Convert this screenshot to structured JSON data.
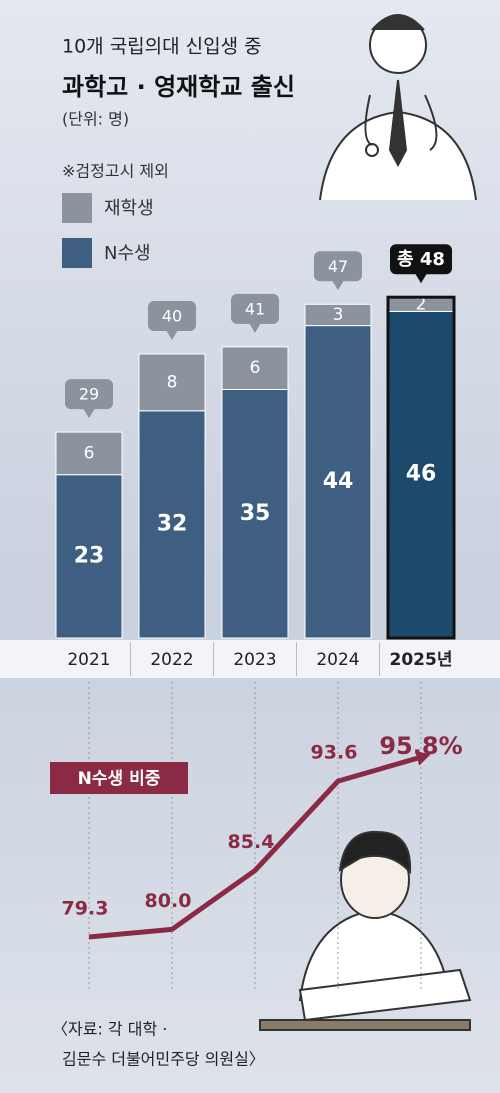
{
  "title": "10개 국립의대 신입생 중",
  "subtitle": "과학고 · 영재학교 출신",
  "unit": "(단위: 명)",
  "note": "※검정고시 제외",
  "chart_data": [
    {
      "type": "bar",
      "stacked": true,
      "categories": [
        "2021",
        "2022",
        "2023",
        "2024",
        "2025년"
      ],
      "series": [
        {
          "name": "N수생",
          "color": "#3f5f82",
          "values": [
            23,
            32,
            35,
            44,
            46
          ]
        },
        {
          "name": "재학생",
          "color": "#8a939e",
          "values": [
            6,
            8,
            6,
            3,
            2
          ]
        }
      ],
      "totals": [
        29,
        40,
        41,
        47,
        48
      ],
      "total_labels": [
        "29",
        "40",
        "41",
        "47",
        "총 48"
      ],
      "highlight_color": "#1d4a6c"
    },
    {
      "type": "line",
      "title": "N수생 비중",
      "values": [
        79.3,
        80.0,
        85.4,
        93.6,
        95.8
      ],
      "value_labels": [
        "79.3",
        "80.0",
        "85.4",
        "93.6",
        "95.8%"
      ],
      "color": "#8b2a45"
    }
  ],
  "source": [
    "〈자료: 각 대학 ·",
    "김문수 더불어민주당 의원실〉"
  ]
}
